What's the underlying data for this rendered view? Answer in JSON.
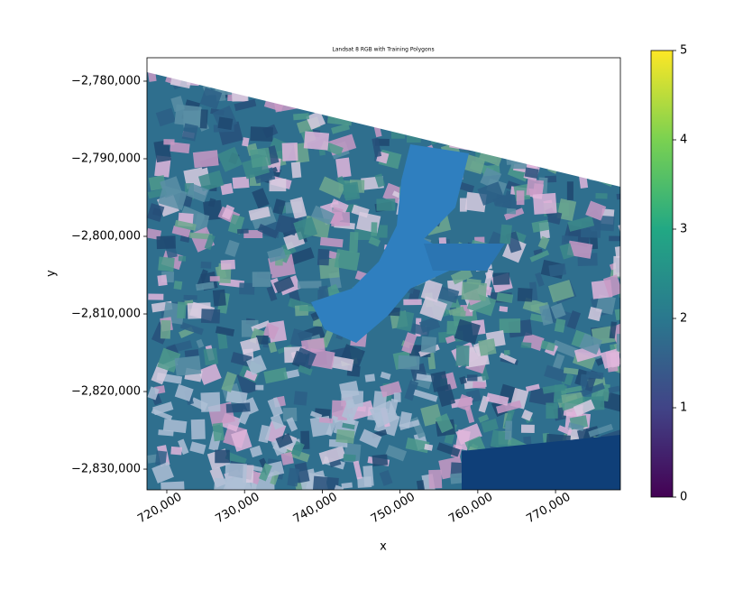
{
  "chart_data": {
    "type": "image",
    "title": "Landsat 8 RGB with Training Polygons",
    "xlabel": "x",
    "ylabel": "y",
    "xlim": [
      717450,
      778340
    ],
    "ylim": [
      -2832670,
      -2776980
    ],
    "xticks": [
      {
        "value": 720000,
        "label": "720,000"
      },
      {
        "value": 730000,
        "label": "730,000"
      },
      {
        "value": 740000,
        "label": "740,000"
      },
      {
        "value": 750000,
        "label": "750,000"
      },
      {
        "value": 760000,
        "label": "760,000"
      },
      {
        "value": 770000,
        "label": "770,000"
      }
    ],
    "yticks": [
      {
        "value": -2780000,
        "label": "−2,780,000"
      },
      {
        "value": -2790000,
        "label": "−2,790,000"
      },
      {
        "value": -2800000,
        "label": "−2,800,000"
      },
      {
        "value": -2810000,
        "label": "−2,810,000"
      },
      {
        "value": -2820000,
        "label": "−2,820,000"
      },
      {
        "value": -2830000,
        "label": "−2,830,000"
      }
    ],
    "colorbar": {
      "colormap": "viridis",
      "lim": [
        0,
        5
      ],
      "ticks": [
        0,
        1,
        2,
        3,
        4,
        5
      ]
    }
  }
}
